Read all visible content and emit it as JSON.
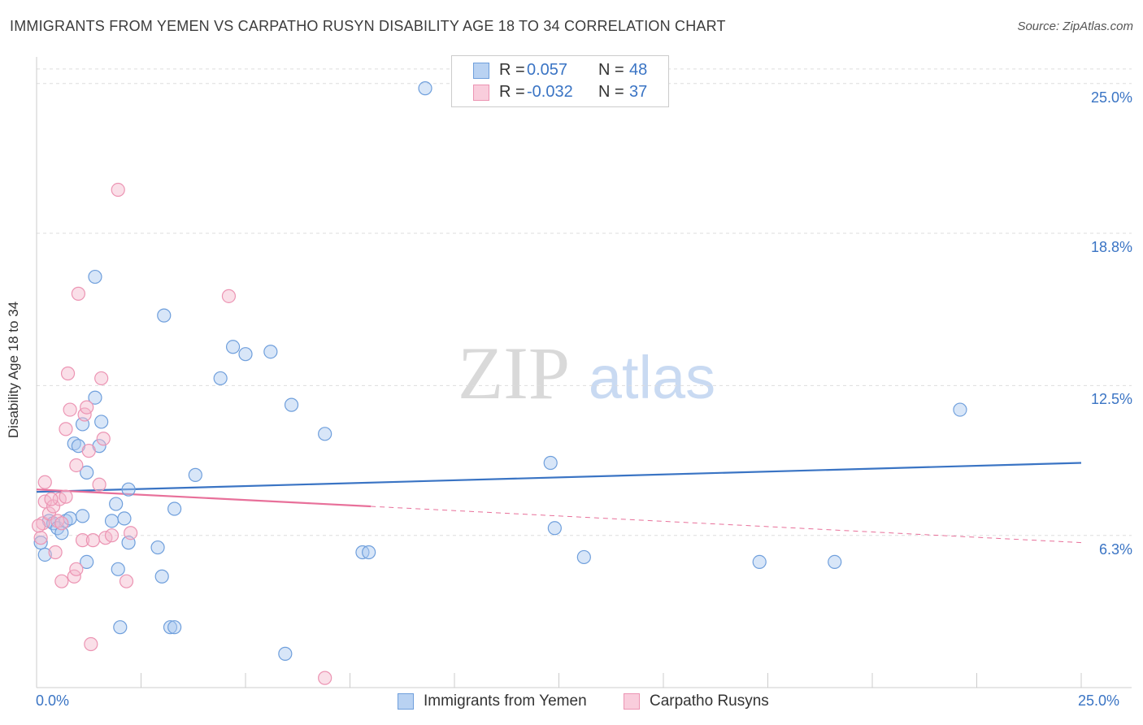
{
  "title": "IMMIGRANTS FROM YEMEN VS CARPATHO RUSYN DISABILITY AGE 18 TO 34 CORRELATION CHART",
  "source": "Source: ZipAtlas.com",
  "watermark": {
    "zip": "ZIP",
    "atlas": "atlas"
  },
  "colors": {
    "blue": "#3a74c4",
    "blue_fill": "#a9c7ef",
    "blue_stroke": "#6f9fdc",
    "pink": "#e8709a",
    "pink_fill": "#f5b9cd",
    "pink_stroke": "#ec94b3",
    "grid": "#dddddd",
    "axis": "#cccccc"
  },
  "legend": {
    "r_label": "R =",
    "n_label": "N =",
    "series": [
      {
        "name": "Immigrants from Yemen",
        "r": "0.057",
        "n": "48"
      },
      {
        "name": "Carpatho Rusyns",
        "r": "-0.032",
        "n": "37"
      }
    ]
  },
  "chart_data": {
    "type": "scatter",
    "title": "IMMIGRANTS FROM YEMEN VS CARPATHO RUSYN DISABILITY AGE 18 TO 34 CORRELATION CHART",
    "xlabel": "",
    "ylabel": "Disability Age 18 to 34",
    "xlim": [
      0,
      25
    ],
    "ylim": [
      0,
      26.1
    ],
    "x_tick_labels": [
      "0.0%",
      "25.0%"
    ],
    "y_ticks": [
      6.3,
      12.5,
      18.8,
      25.0
    ],
    "y_tick_labels": [
      "6.3%",
      "12.5%",
      "18.8%",
      "25.0%"
    ],
    "grid": "horizontal dashed",
    "series": [
      {
        "name": "Immigrants from Yemen",
        "color": "blue",
        "points": [
          [
            0.1,
            6.0
          ],
          [
            0.2,
            5.5
          ],
          [
            0.3,
            6.9
          ],
          [
            0.4,
            6.8
          ],
          [
            0.5,
            6.6
          ],
          [
            0.6,
            6.4
          ],
          [
            0.7,
            6.9
          ],
          [
            0.8,
            7.0
          ],
          [
            0.9,
            10.1
          ],
          [
            1.0,
            10.0
          ],
          [
            1.1,
            7.1
          ],
          [
            1.1,
            10.9
          ],
          [
            1.2,
            8.9
          ],
          [
            1.2,
            5.2
          ],
          [
            1.4,
            17.0
          ],
          [
            1.4,
            12.0
          ],
          [
            1.5,
            10.0
          ],
          [
            1.55,
            11.0
          ],
          [
            1.8,
            6.9
          ],
          [
            1.9,
            7.6
          ],
          [
            1.95,
            4.9
          ],
          [
            2.0,
            2.5
          ],
          [
            2.1,
            7.0
          ],
          [
            2.2,
            6.0
          ],
          [
            2.2,
            8.2
          ],
          [
            2.9,
            5.8
          ],
          [
            3.0,
            4.6
          ],
          [
            3.05,
            15.4
          ],
          [
            3.2,
            2.5
          ],
          [
            3.3,
            2.5
          ],
          [
            3.3,
            7.4
          ],
          [
            3.8,
            8.8
          ],
          [
            4.4,
            12.8
          ],
          [
            4.7,
            14.1
          ],
          [
            5.0,
            13.8
          ],
          [
            5.6,
            13.9
          ],
          [
            5.95,
            1.4
          ],
          [
            6.1,
            11.7
          ],
          [
            6.9,
            10.5
          ],
          [
            7.8,
            5.6
          ],
          [
            7.95,
            5.6
          ],
          [
            9.3,
            24.8
          ],
          [
            12.3,
            9.3
          ],
          [
            12.4,
            6.6
          ],
          [
            13.1,
            5.4
          ],
          [
            17.3,
            5.2
          ],
          [
            19.1,
            5.2
          ],
          [
            22.1,
            11.5
          ]
        ]
      },
      {
        "name": "Carpatho Rusyns",
        "color": "pink",
        "points": [
          [
            0.1,
            6.2
          ],
          [
            0.15,
            6.8
          ],
          [
            0.2,
            7.7
          ],
          [
            0.2,
            8.5
          ],
          [
            0.3,
            7.2
          ],
          [
            0.4,
            7.5
          ],
          [
            0.45,
            5.6
          ],
          [
            0.5,
            6.9
          ],
          [
            0.55,
            7.8
          ],
          [
            0.6,
            4.4
          ],
          [
            0.6,
            6.8
          ],
          [
            0.7,
            10.7
          ],
          [
            0.7,
            7.9
          ],
          [
            0.75,
            13.0
          ],
          [
            0.8,
            11.5
          ],
          [
            0.9,
            4.6
          ],
          [
            0.95,
            4.9
          ],
          [
            0.95,
            9.2
          ],
          [
            1.0,
            16.3
          ],
          [
            1.1,
            6.1
          ],
          [
            1.15,
            11.3
          ],
          [
            1.2,
            11.6
          ],
          [
            1.25,
            9.8
          ],
          [
            1.3,
            1.8
          ],
          [
            1.35,
            6.1
          ],
          [
            1.5,
            8.4
          ],
          [
            1.55,
            12.8
          ],
          [
            1.6,
            10.3
          ],
          [
            1.65,
            6.2
          ],
          [
            1.8,
            6.3
          ],
          [
            1.95,
            20.6
          ],
          [
            2.15,
            4.4
          ],
          [
            2.25,
            6.4
          ],
          [
            4.6,
            16.2
          ],
          [
            6.9,
            0.4
          ],
          [
            0.05,
            6.7
          ],
          [
            0.35,
            7.8
          ]
        ]
      }
    ],
    "trend_lines": [
      {
        "series": "Immigrants from Yemen",
        "x": [
          0,
          25
        ],
        "y": [
          8.1,
          9.3
        ],
        "style": "solid"
      },
      {
        "series": "Carpatho Rusyns",
        "x": [
          0,
          8
        ],
        "y": [
          8.2,
          7.5
        ],
        "style": "solid"
      },
      {
        "series": "Carpatho Rusyns",
        "x": [
          8,
          25
        ],
        "y": [
          7.5,
          6.0
        ],
        "style": "dashed"
      }
    ]
  }
}
